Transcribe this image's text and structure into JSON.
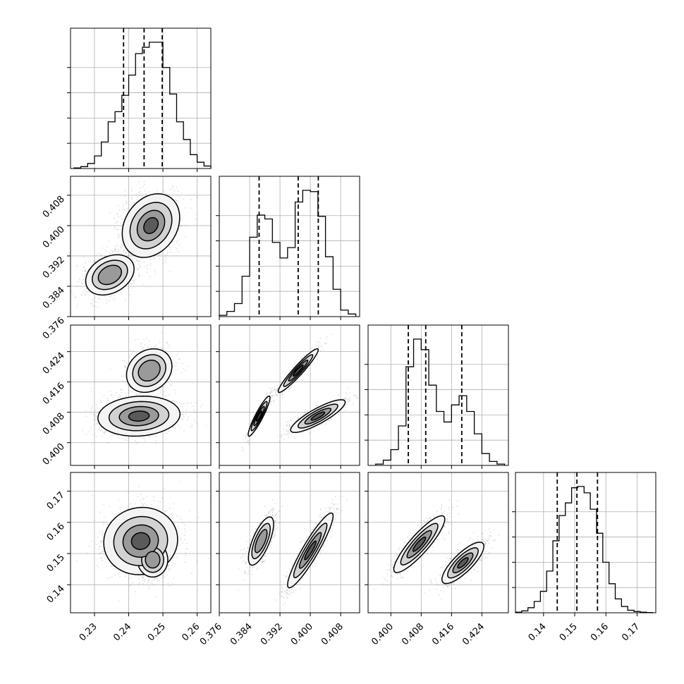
{
  "chart_data": {
    "type": "corner",
    "title": "",
    "n_params": 4,
    "params": [
      {
        "name": "",
        "range": [
          0.223,
          0.264
        ],
        "ticks": [
          0.23,
          0.24,
          0.25,
          0.26
        ],
        "tick_labels": [
          "0.23",
          "0.24",
          "0.25",
          "0.26"
        ],
        "quantiles": [
          0.2385,
          0.2445,
          0.2498
        ],
        "hist_bins": [
          0.224,
          0.226,
          0.228,
          0.23,
          0.232,
          0.234,
          0.236,
          0.238,
          0.24,
          0.242,
          0.244,
          0.246,
          0.248,
          0.25,
          0.252,
          0.254,
          0.256,
          0.258,
          0.26,
          0.262,
          0.264
        ],
        "hist_counts": [
          0.5,
          1.5,
          4,
          10,
          21,
          37,
          45,
          58,
          74,
          91,
          96,
          100,
          100,
          80,
          59,
          37,
          23,
          11,
          5,
          2
        ]
      },
      {
        "name": "",
        "range": [
          0.376,
          0.413
        ],
        "ticks": [
          0.376,
          0.384,
          0.392,
          0.4,
          0.408
        ],
        "tick_labels": [
          "0.376",
          "0.384",
          "0.392",
          "0.400",
          "0.408"
        ],
        "quantiles": [
          0.3865,
          0.3968,
          0.4021
        ],
        "hist_bins": [
          0.376,
          0.378,
          0.38,
          0.382,
          0.384,
          0.386,
          0.388,
          0.39,
          0.392,
          0.394,
          0.396,
          0.398,
          0.4,
          0.402,
          0.404,
          0.406,
          0.408,
          0.41,
          0.412
        ],
        "hist_counts": [
          1,
          4,
          10,
          31,
          61,
          78,
          75,
          57,
          45,
          53,
          88,
          97,
          96,
          77,
          46,
          21,
          5,
          2
        ]
      },
      {
        "name": "",
        "range": [
          0.394,
          0.431
        ],
        "ticks": [
          0.4,
          0.408,
          0.416,
          0.424
        ],
        "tick_labels": [
          "0.400",
          "0.408",
          "0.416",
          "0.424"
        ],
        "quantiles": [
          0.4046,
          0.4092,
          0.4187
        ],
        "hist_bins": [
          0.396,
          0.398,
          0.4,
          0.402,
          0.404,
          0.406,
          0.408,
          0.41,
          0.412,
          0.414,
          0.416,
          0.418,
          0.42,
          0.422,
          0.424,
          0.426,
          0.428,
          0.43
        ],
        "hist_counts": [
          1,
          4,
          12,
          30,
          75,
          96,
          88,
          61,
          41,
          33,
          46,
          53,
          41,
          24,
          9,
          3,
          1
        ]
      },
      {
        "name": "",
        "range": [
          0.131,
          0.176
        ],
        "ticks": [
          0.14,
          0.15,
          0.16,
          0.17
        ],
        "tick_labels": [
          "0.14",
          "0.15",
          "0.16",
          "0.17"
        ],
        "quantiles": [
          0.1444,
          0.1507,
          0.1573
        ],
        "hist_bins": [
          0.131,
          0.133,
          0.135,
          0.137,
          0.139,
          0.141,
          0.143,
          0.145,
          0.147,
          0.149,
          0.151,
          0.153,
          0.155,
          0.157,
          0.159,
          0.161,
          0.163,
          0.165,
          0.167,
          0.169,
          0.171,
          0.173,
          0.175
        ],
        "hist_counts": [
          0.5,
          1.5,
          4,
          9,
          17,
          33,
          57,
          77,
          87,
          99,
          100,
          95,
          82,
          63,
          40,
          23,
          11,
          5,
          2,
          1,
          0.5,
          0.2
        ]
      }
    ],
    "pairs": [
      {
        "x": 0,
        "y": 1,
        "modes": [
          {
            "cx": 0.2465,
            "cy": 0.4,
            "sx": 0.0035,
            "sy": 0.0035,
            "rho": 0.25,
            "w": 1.0
          },
          {
            "cx": 0.2345,
            "cy": 0.387,
            "sx": 0.0032,
            "sy": 0.0024,
            "rho": 0.3,
            "w": 0.65
          }
        ]
      },
      {
        "x": 0,
        "y": 2,
        "modes": [
          {
            "cx": 0.243,
            "cy": 0.407,
            "sx": 0.005,
            "sy": 0.0022,
            "rho": 0.1,
            "w": 1.0
          },
          {
            "cx": 0.246,
            "cy": 0.419,
            "sx": 0.003,
            "sy": 0.0026,
            "rho": 0.2,
            "w": 0.55
          }
        ]
      },
      {
        "x": 0,
        "y": 3,
        "modes": [
          {
            "cx": 0.2435,
            "cy": 0.154,
            "sx": 0.0045,
            "sy": 0.0045,
            "rho": 0.05,
            "w": 1.0
          },
          {
            "cx": 0.247,
            "cy": 0.148,
            "sx": 0.002,
            "sy": 0.0025,
            "rho": 0.0,
            "w": 0.6
          }
        ]
      },
      {
        "x": 1,
        "y": 2,
        "modes": [
          {
            "cx": 0.3865,
            "cy": 0.407,
            "sx": 0.0012,
            "sy": 0.0022,
            "rho": 0.92,
            "w": 0.75
          },
          {
            "cx": 0.3968,
            "cy": 0.419,
            "sx": 0.0022,
            "sy": 0.0024,
            "rho": 0.95,
            "w": 1.0
          },
          {
            "cx": 0.402,
            "cy": 0.407,
            "sx": 0.003,
            "sy": 0.0018,
            "rho": 0.85,
            "w": 0.9
          }
        ]
      },
      {
        "x": 1,
        "y": 3,
        "modes": [
          {
            "cx": 0.387,
            "cy": 0.154,
            "sx": 0.0015,
            "sy": 0.0035,
            "rho": 0.7,
            "w": 0.6
          },
          {
            "cx": 0.4,
            "cy": 0.151,
            "sx": 0.0025,
            "sy": 0.005,
            "rho": 0.92,
            "w": 1.0
          }
        ]
      },
      {
        "x": 2,
        "y": 3,
        "modes": [
          {
            "cx": 0.4075,
            "cy": 0.153,
            "sx": 0.0028,
            "sy": 0.0038,
            "rho": 0.88,
            "w": 1.0
          },
          {
            "cx": 0.419,
            "cy": 0.147,
            "sx": 0.0025,
            "sy": 0.003,
            "rho": 0.8,
            "w": 0.7
          }
        ]
      }
    ],
    "colors": {
      "line": "#000000",
      "grid": "#b0b0b0",
      "points": "#000000"
    },
    "grid": true,
    "quantile_line_style": "dashed"
  }
}
